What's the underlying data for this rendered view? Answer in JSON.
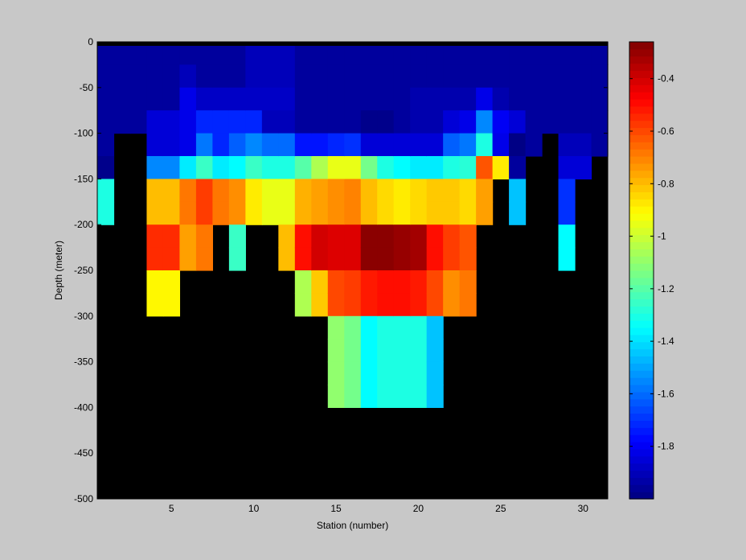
{
  "chart_data": {
    "type": "heatmap",
    "title": "",
    "xlabel": "Station (number)",
    "ylabel": "Depth (meter)",
    "xlim": [
      1,
      31
    ],
    "ylim": [
      -500,
      0
    ],
    "xticks": [
      5,
      10,
      15,
      20,
      25,
      30
    ],
    "yticks": [
      0,
      -50,
      -100,
      -150,
      -200,
      -250,
      -300,
      -350,
      -400,
      -450,
      -500
    ],
    "colorbar": {
      "range": [
        -2.0,
        -0.26
      ],
      "ticks": [
        -0.4,
        -0.6,
        -0.8,
        -1,
        -1.2,
        -1.4,
        -1.6,
        -1.8
      ],
      "colormap": "jet",
      "placement": "right"
    },
    "mask_color": "#000000",
    "background_color": "#c8c8c8",
    "cell_height_m": 25,
    "columns": [
      {
        "station": 1,
        "values": [
          -1.95,
          -1.95,
          -1.95,
          -1.95,
          -1.95,
          -1.98,
          -1.3,
          -1.3
        ]
      },
      {
        "station": 2,
        "values": [
          -1.95,
          -1.95,
          -1.95,
          -1.95
        ]
      },
      {
        "station": 3,
        "values": [
          -1.95,
          -1.95,
          -1.95,
          -1.95
        ]
      },
      {
        "station": 4,
        "values": [
          -1.95,
          -1.95,
          -1.95,
          -1.85,
          -1.85,
          -1.55,
          -0.8,
          -0.8,
          -0.55,
          -0.55,
          -0.9,
          -0.9
        ]
      },
      {
        "station": 5,
        "values": [
          -1.95,
          -1.95,
          -1.95,
          -1.85,
          -1.85,
          -1.55,
          -0.8,
          -0.8,
          -0.55,
          -0.55,
          -0.9,
          -0.9
        ]
      },
      {
        "station": 6,
        "values": [
          -1.95,
          -1.9,
          -1.82,
          -1.82,
          -1.82,
          -1.38,
          -0.68,
          -0.68,
          -0.75,
          -0.75
        ]
      },
      {
        "station": 7,
        "values": [
          -1.95,
          -1.95,
          -1.88,
          -1.72,
          -1.58,
          -1.25,
          -0.58,
          -0.58,
          -0.68,
          -0.68
        ]
      },
      {
        "station": 8,
        "values": [
          -1.95,
          -1.95,
          -1.88,
          -1.72,
          -1.72,
          -1.38,
          -0.68,
          -0.68
        ]
      },
      {
        "station": 9,
        "values": [
          -1.95,
          -1.95,
          -1.88,
          -1.72,
          -1.62,
          -1.35,
          -0.72,
          -0.72,
          -1.25,
          -1.25
        ]
      },
      {
        "station": 10,
        "values": [
          -1.9,
          -1.9,
          -1.88,
          -1.72,
          -1.55,
          -1.25,
          -0.88,
          -0.88
        ]
      },
      {
        "station": 11,
        "values": [
          -1.9,
          -1.9,
          -1.88,
          -1.9,
          -1.6,
          -1.3,
          -0.95,
          -0.95
        ]
      },
      {
        "station": 12,
        "values": [
          -1.9,
          -1.9,
          -1.88,
          -1.9,
          -1.6,
          -1.3,
          -0.95,
          -0.95,
          -0.8,
          -0.8
        ]
      },
      {
        "station": 13,
        "values": [
          -1.95,
          -1.95,
          -1.95,
          -1.95,
          -1.75,
          -1.2,
          -0.78,
          -0.78,
          -0.5,
          -0.5,
          -1.05,
          -1.05
        ]
      },
      {
        "station": 14,
        "values": [
          -1.95,
          -1.95,
          -1.95,
          -1.95,
          -1.75,
          -1.05,
          -0.75,
          -0.75,
          -0.4,
          -0.4,
          -0.82,
          -0.82
        ]
      },
      {
        "station": 15,
        "values": [
          -1.95,
          -1.95,
          -1.95,
          -1.95,
          -1.72,
          -0.95,
          -0.72,
          -0.72,
          -0.42,
          -0.42,
          -0.6,
          -0.6,
          -1.1,
          -1.1,
          -1.1,
          -1.1
        ]
      },
      {
        "station": 16,
        "values": [
          -1.95,
          -1.95,
          -1.95,
          -1.95,
          -1.7,
          -0.95,
          -0.7,
          -0.7,
          -0.42,
          -0.42,
          -0.58,
          -0.58,
          -1.15,
          -1.15,
          -1.15,
          -1.15
        ]
      },
      {
        "station": 17,
        "values": [
          -1.95,
          -1.95,
          -1.95,
          -1.98,
          -1.85,
          -1.15,
          -0.8,
          -0.8,
          -0.28,
          -0.28,
          -0.52,
          -0.52,
          -1.35,
          -1.35,
          -1.35,
          -1.35
        ]
      },
      {
        "station": 18,
        "values": [
          -1.95,
          -1.95,
          -1.95,
          -1.98,
          -1.85,
          -1.3,
          -0.85,
          -0.85,
          -0.28,
          -0.28,
          -0.5,
          -0.5,
          -1.3,
          -1.3,
          -1.3,
          -1.3
        ]
      },
      {
        "station": 19,
        "values": [
          -1.95,
          -1.95,
          -1.95,
          -1.95,
          -1.85,
          -1.35,
          -0.88,
          -0.88,
          -0.3,
          -0.3,
          -0.5,
          -0.5,
          -1.3,
          -1.3,
          -1.3,
          -1.3
        ]
      },
      {
        "station": 20,
        "values": [
          -1.95,
          -1.95,
          -1.92,
          -1.92,
          -1.85,
          -1.38,
          -0.85,
          -0.85,
          -0.32,
          -0.32,
          -0.52,
          -0.52,
          -1.3,
          -1.3,
          -1.3,
          -1.3
        ]
      },
      {
        "station": 21,
        "values": [
          -1.95,
          -1.95,
          -1.92,
          -1.92,
          -1.85,
          -1.38,
          -0.82,
          -0.82,
          -0.5,
          -0.5,
          -0.6,
          -0.6,
          -1.45,
          -1.45,
          -1.45,
          -1.45
        ]
      },
      {
        "station": 22,
        "values": [
          -1.95,
          -1.95,
          -1.92,
          -1.85,
          -1.62,
          -1.3,
          -0.82,
          -0.82,
          -0.58,
          -0.58,
          -0.72,
          -0.72
        ]
      },
      {
        "station": 23,
        "values": [
          -1.95,
          -1.95,
          -1.92,
          -1.82,
          -1.58,
          -1.28,
          -0.85,
          -0.85,
          -0.62,
          -0.62,
          -0.68,
          -0.68
        ]
      },
      {
        "station": 24,
        "values": [
          -1.95,
          -1.95,
          -1.82,
          -1.55,
          -1.3,
          -0.62,
          -0.75,
          -0.75
        ]
      },
      {
        "station": 25,
        "values": [
          -1.95,
          -1.95,
          -1.92,
          -1.8,
          -1.82,
          -0.88
        ]
      },
      {
        "station": 26,
        "values": [
          -1.95,
          -1.95,
          -1.95,
          -1.85,
          -1.99,
          -1.95,
          -1.45,
          -1.45
        ]
      },
      {
        "station": 27,
        "values": [
          -1.95,
          -1.95,
          -1.95,
          -1.95,
          -1.95
        ]
      },
      {
        "station": 28,
        "values": [
          -1.95,
          -1.95,
          -1.95,
          -1.95
        ]
      },
      {
        "station": 29,
        "values": [
          -1.95,
          -1.95,
          -1.95,
          -1.95,
          -1.9,
          -1.85,
          -1.7,
          -1.7,
          -1.35,
          -1.35
        ]
      },
      {
        "station": 30,
        "values": [
          -1.95,
          -1.95,
          -1.95,
          -1.95,
          -1.9,
          -1.85
        ]
      },
      {
        "station": 31,
        "values": [
          -1.95,
          -1.95,
          -1.95,
          -1.95,
          -1.95
        ]
      }
    ]
  }
}
